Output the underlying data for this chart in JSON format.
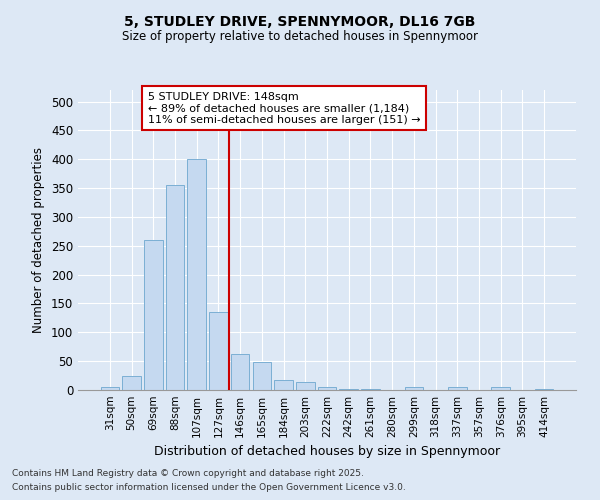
{
  "title1": "5, STUDLEY DRIVE, SPENNYMOOR, DL16 7GB",
  "title2": "Size of property relative to detached houses in Spennymoor",
  "xlabel": "Distribution of detached houses by size in Spennymoor",
  "ylabel": "Number of detached properties",
  "categories": [
    "31sqm",
    "50sqm",
    "69sqm",
    "88sqm",
    "107sqm",
    "127sqm",
    "146sqm",
    "165sqm",
    "184sqm",
    "203sqm",
    "222sqm",
    "242sqm",
    "261sqm",
    "280sqm",
    "299sqm",
    "318sqm",
    "337sqm",
    "357sqm",
    "376sqm",
    "395sqm",
    "414sqm"
  ],
  "values": [
    5,
    25,
    260,
    355,
    400,
    135,
    63,
    48,
    18,
    14,
    6,
    2,
    1,
    0,
    5,
    0,
    5,
    0,
    5,
    0,
    2
  ],
  "bar_color": "#c5d9f0",
  "bar_edge_color": "#7bafd4",
  "background_color": "#dde8f5",
  "grid_color": "#ffffff",
  "vline_color": "#cc0000",
  "vline_pos": 5.5,
  "annotation_line1": "5 STUDLEY DRIVE: 148sqm",
  "annotation_line2": "← 89% of detached houses are smaller (1,184)",
  "annotation_line3": "11% of semi-detached houses are larger (151) →",
  "annotation_box_color": "#ffffff",
  "annotation_box_edge": "#cc0000",
  "footer1": "Contains HM Land Registry data © Crown copyright and database right 2025.",
  "footer2": "Contains public sector information licensed under the Open Government Licence v3.0.",
  "ylim": [
    0,
    520
  ],
  "yticks": [
    0,
    50,
    100,
    150,
    200,
    250,
    300,
    350,
    400,
    450,
    500
  ]
}
